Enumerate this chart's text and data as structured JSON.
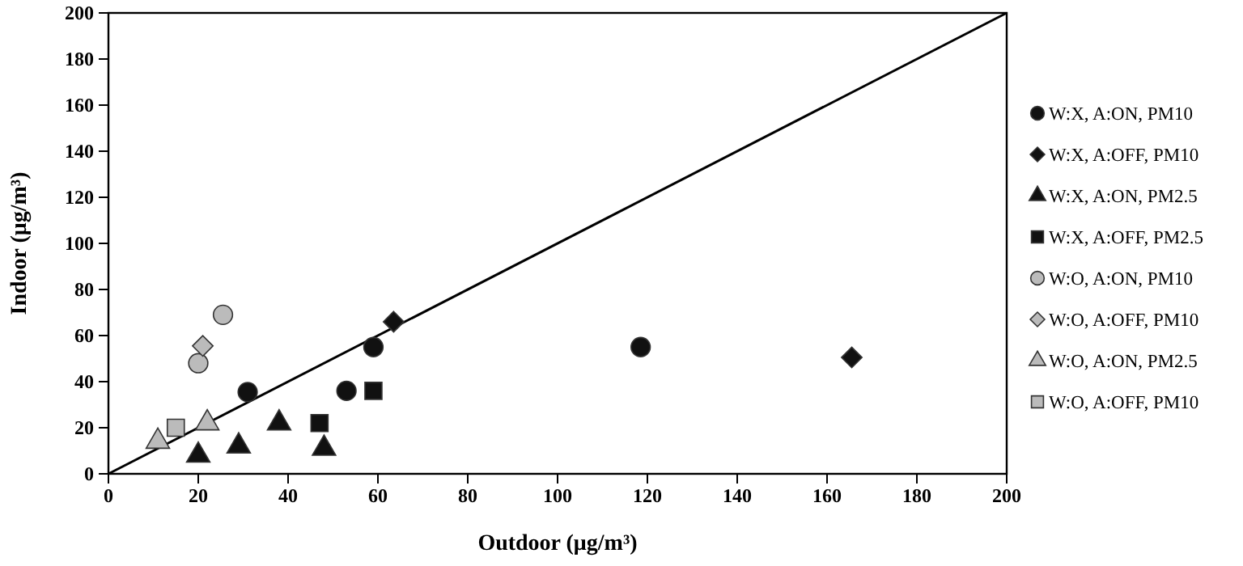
{
  "chart_data": {
    "type": "scatter",
    "xlabel": "Outdoor (μg/m³)",
    "ylabel": "Indoor (μg/m³)",
    "xlim": [
      0,
      200
    ],
    "ylim": [
      0,
      200
    ],
    "xticks": [
      0,
      20,
      40,
      60,
      80,
      100,
      120,
      140,
      160,
      180,
      200
    ],
    "yticks": [
      0,
      20,
      40,
      60,
      80,
      100,
      120,
      140,
      160,
      180,
      200
    ],
    "grid": false,
    "legend": "right",
    "series": [
      {
        "name": "W:X, A:ON, PM10",
        "color": "#111111",
        "marker": "circle",
        "x": [
          31,
          53,
          59,
          118.5
        ],
        "values": [
          35.5,
          36,
          55,
          55
        ]
      },
      {
        "name": "W:X, A:OFF, PM10",
        "color": "#111111",
        "marker": "diamond",
        "x": [
          63.5,
          165.5
        ],
        "values": [
          66,
          50.5
        ]
      },
      {
        "name": "W:X, A:ON, PM2.5",
        "color": "#111111",
        "marker": "triangle",
        "x": [
          20,
          29,
          38,
          48
        ],
        "values": [
          8,
          12,
          22,
          11
        ]
      },
      {
        "name": "W:X, A:OFF, PM2.5",
        "color": "#111111",
        "marker": "square",
        "x": [
          47,
          59
        ],
        "values": [
          22,
          36
        ]
      },
      {
        "name": "W:O, A:ON, PM10",
        "color": "#bbbbbb",
        "marker": "circle",
        "x": [
          20,
          25.5
        ],
        "values": [
          48,
          69
        ]
      },
      {
        "name": "W:O, A:OFF, PM10",
        "color": "#bbbbbb",
        "marker": "diamond",
        "x": [
          21
        ],
        "values": [
          55.5
        ]
      },
      {
        "name": "W:O, A:ON, PM2.5",
        "color": "#bbbbbb",
        "marker": "triangle",
        "x": [
          11,
          22
        ],
        "values": [
          14,
          22
        ]
      },
      {
        "name": "W:O, A:OFF, PM10",
        "color": "#bbbbbb",
        "marker": "square",
        "x": [
          15
        ],
        "values": [
          20
        ]
      },
      {
        "type": "line",
        "color": "#000000",
        "x": [
          0,
          200
        ],
        "values": [
          0,
          200
        ]
      }
    ]
  }
}
